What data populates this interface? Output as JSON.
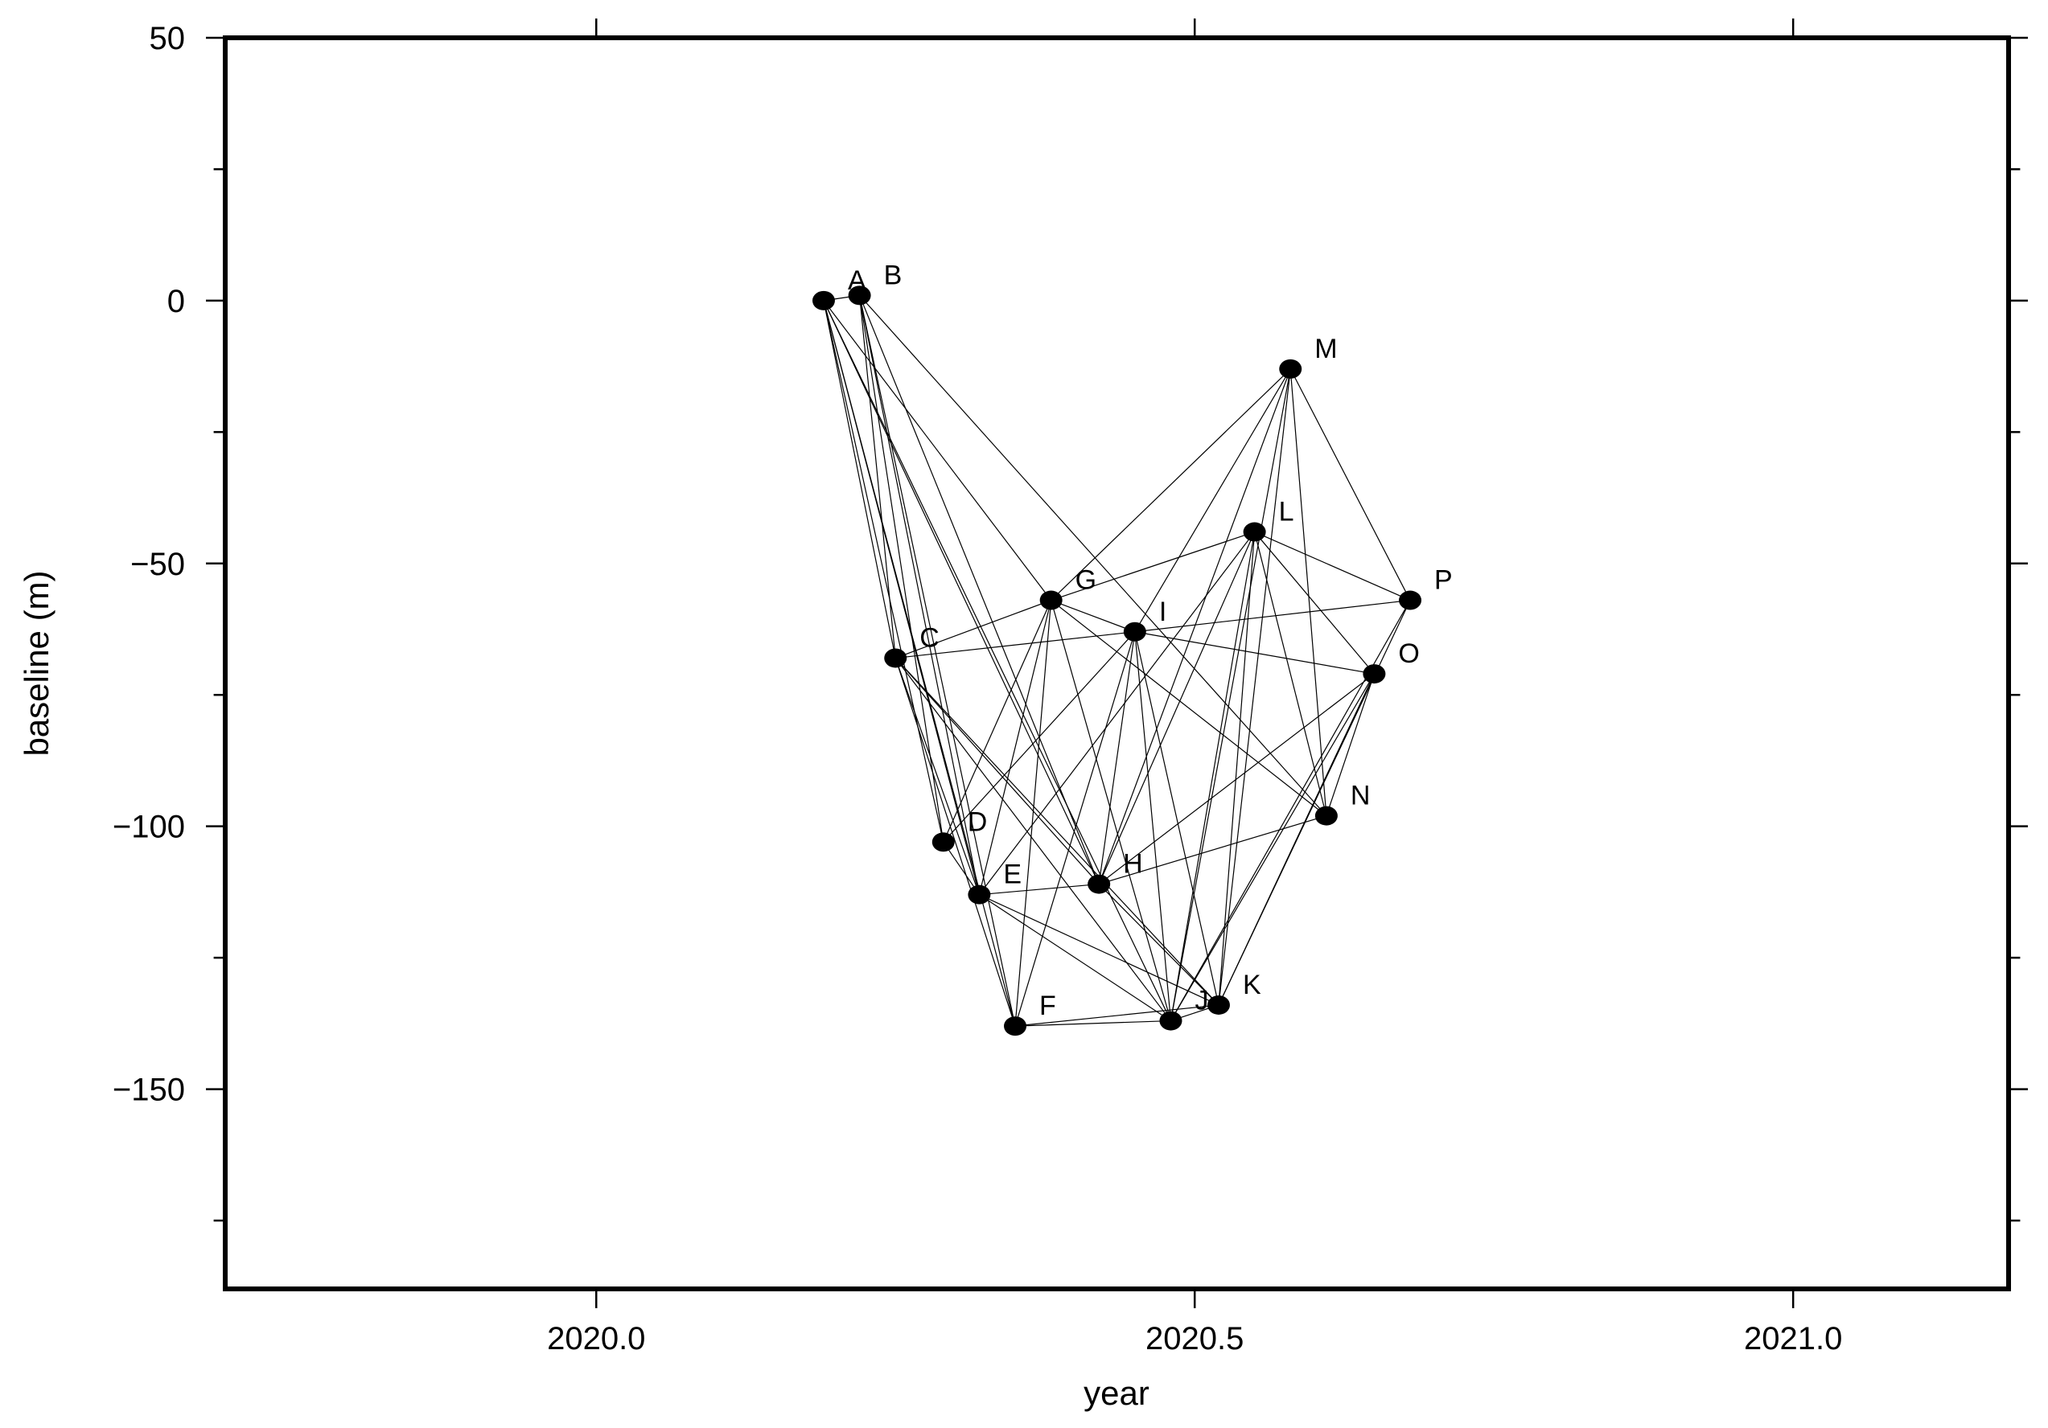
{
  "chart_data": {
    "type": "scatter",
    "title": "",
    "xlabel": "year",
    "ylabel": "baseline (m)",
    "xlim": [
      2019.69,
      2021.18
    ],
    "ylim": [
      -188,
      50
    ],
    "x_ticks": [
      2020.0,
      2020.5,
      2021.0
    ],
    "x_tick_labels": [
      "2020.0",
      "2020.5",
      "2021.0"
    ],
    "x_minor_ticks": [
      2020.0,
      2020.5,
      2021.0
    ],
    "y_ticks": [
      50,
      0,
      -50,
      -100,
      -150
    ],
    "y_tick_labels": [
      "50",
      "0",
      "−50",
      "−100",
      "−150"
    ],
    "y_minor_ticks": [
      50,
      25,
      0,
      -25,
      -50,
      -75,
      -100,
      -125,
      -150,
      -175
    ],
    "grid": false,
    "points": [
      {
        "label": "A",
        "x": 2020.19,
        "y": 0
      },
      {
        "label": "B",
        "x": 2020.22,
        "y": 1
      },
      {
        "label": "C",
        "x": 2020.25,
        "y": -68
      },
      {
        "label": "D",
        "x": 2020.29,
        "y": -103
      },
      {
        "label": "E",
        "x": 2020.32,
        "y": -113
      },
      {
        "label": "F",
        "x": 2020.35,
        "y": -138
      },
      {
        "label": "G",
        "x": 2020.38,
        "y": -57
      },
      {
        "label": "H",
        "x": 2020.42,
        "y": -111
      },
      {
        "label": "I",
        "x": 2020.45,
        "y": -63
      },
      {
        "label": "J",
        "x": 2020.48,
        "y": -137
      },
      {
        "label": "K",
        "x": 2020.52,
        "y": -134
      },
      {
        "label": "L",
        "x": 2020.55,
        "y": -44
      },
      {
        "label": "M",
        "x": 2020.58,
        "y": -13
      },
      {
        "label": "N",
        "x": 2020.61,
        "y": -98
      },
      {
        "label": "O",
        "x": 2020.65,
        "y": -71
      },
      {
        "label": "P",
        "x": 2020.68,
        "y": -57
      }
    ],
    "connections": [
      [
        "A",
        "B"
      ],
      [
        "A",
        "C"
      ],
      [
        "A",
        "D"
      ],
      [
        "A",
        "E"
      ],
      [
        "A",
        "F"
      ],
      [
        "A",
        "G"
      ],
      [
        "A",
        "H"
      ],
      [
        "A",
        "J"
      ],
      [
        "B",
        "C"
      ],
      [
        "B",
        "D"
      ],
      [
        "B",
        "E"
      ],
      [
        "B",
        "F"
      ],
      [
        "B",
        "H"
      ],
      [
        "B",
        "N"
      ],
      [
        "C",
        "G"
      ],
      [
        "C",
        "I"
      ],
      [
        "C",
        "E"
      ],
      [
        "C",
        "F"
      ],
      [
        "C",
        "H"
      ],
      [
        "C",
        "J"
      ],
      [
        "C",
        "K"
      ],
      [
        "D",
        "E"
      ],
      [
        "D",
        "G"
      ],
      [
        "D",
        "I"
      ],
      [
        "E",
        "H"
      ],
      [
        "E",
        "J"
      ],
      [
        "E",
        "G"
      ],
      [
        "E",
        "L"
      ],
      [
        "E",
        "K"
      ],
      [
        "F",
        "J"
      ],
      [
        "F",
        "G"
      ],
      [
        "F",
        "I"
      ],
      [
        "F",
        "K"
      ],
      [
        "G",
        "I"
      ],
      [
        "G",
        "L"
      ],
      [
        "G",
        "M"
      ],
      [
        "G",
        "J"
      ],
      [
        "G",
        "N"
      ],
      [
        "H",
        "I"
      ],
      [
        "H",
        "L"
      ],
      [
        "H",
        "M"
      ],
      [
        "H",
        "N"
      ],
      [
        "H",
        "O"
      ],
      [
        "H",
        "K"
      ],
      [
        "I",
        "O"
      ],
      [
        "I",
        "J"
      ],
      [
        "I",
        "K"
      ],
      [
        "I",
        "P"
      ],
      [
        "I",
        "M"
      ],
      [
        "J",
        "K"
      ],
      [
        "J",
        "L"
      ],
      [
        "J",
        "M"
      ],
      [
        "J",
        "O"
      ],
      [
        "J",
        "P"
      ],
      [
        "K",
        "L"
      ],
      [
        "K",
        "M"
      ],
      [
        "K",
        "O"
      ],
      [
        "K",
        "P"
      ],
      [
        "L",
        "N"
      ],
      [
        "L",
        "O"
      ],
      [
        "L",
        "P"
      ],
      [
        "M",
        "P"
      ],
      [
        "M",
        "N"
      ],
      [
        "N",
        "O"
      ]
    ]
  }
}
